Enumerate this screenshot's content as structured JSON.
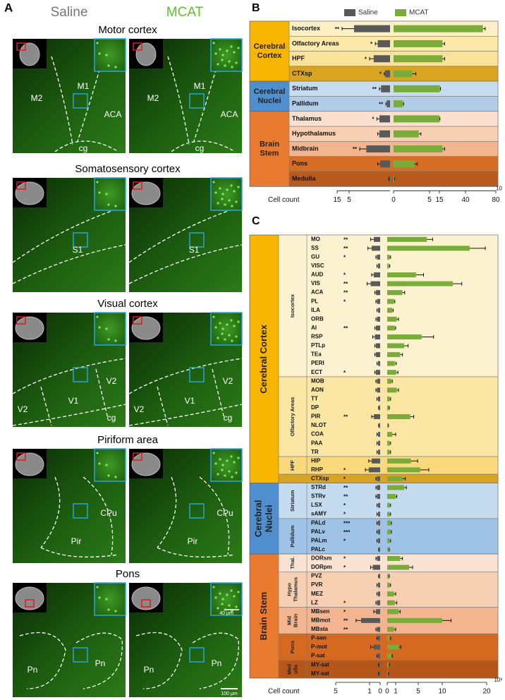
{
  "panel_a": {
    "label": "A",
    "conditions": [
      "Saline",
      "MCAT"
    ],
    "rows": [
      {
        "title": "Motor cortex",
        "regions": [
          "M2",
          "M1",
          "ACA",
          "cg"
        ]
      },
      {
        "title": "Somatosensory cortex",
        "regions": [
          "S1"
        ]
      },
      {
        "title": "Visual cortex",
        "regions": [
          "V1",
          "V2",
          "V2",
          "cg"
        ]
      },
      {
        "title": "Piriform area",
        "regions": [
          "CPu",
          "Pir"
        ]
      },
      {
        "title": "Pons",
        "regions": [
          "Pn",
          "Pn"
        ]
      }
    ],
    "scale_bars": [
      "40 μm",
      "100 μm"
    ]
  },
  "chart_data": [
    {
      "type": "bar",
      "panel": "B",
      "xlabel": "Cell count",
      "x_multiplier": "10",
      "xticks_left": [
        15,
        5
      ],
      "xticks_right": [
        0,
        5,
        15,
        40,
        80
      ],
      "groups": [
        {
          "lines": [
            "Cerebral",
            "Cortex"
          ],
          "color": "#f7b500",
          "categories": [
            "Isocortex",
            "Olfactory Areas",
            "HPF",
            "CTXsp"
          ],
          "significance": [
            "**",
            "*",
            "*",
            "*"
          ],
          "row_colors": [
            "#fdf0c4",
            "#fde9a8",
            "#fbe29a",
            "#d9a521"
          ]
        },
        {
          "lines": [
            "Cerebral",
            "Nuclei"
          ],
          "color": "#4f8fcf",
          "categories": [
            "Striatum",
            "Pallidum"
          ],
          "significance": [
            "**",
            "**"
          ],
          "row_colors": [
            "#c8dcf0",
            "#b3cde9"
          ]
        },
        {
          "lines": [
            "Brain",
            "Stem"
          ],
          "color": "#e97b30",
          "categories": [
            "Thalamus",
            "Hypothalamus",
            "Midbrain",
            "Pons",
            "Medulla"
          ],
          "significance": [
            "*",
            null,
            "**",
            null,
            null
          ],
          "row_colors": [
            "#fbe0cf",
            "#f8cfb3",
            "#f3b590",
            "#d66d25",
            "#b85a1d"
          ]
        }
      ],
      "series": [
        {
          "name": "Saline",
          "color": "#595959",
          "values": [
            4.4,
            1.5,
            2.0,
            0.6,
            1.1,
            0.4,
            1.3,
            1.3,
            2.9,
            1.2,
            0.1
          ],
          "errors": [
            6.5,
            0.3,
            0.5,
            0.1,
            0.2,
            0.1,
            0.3,
            0.2,
            0.8,
            0.3,
            0.05
          ]
        },
        {
          "name": "MCAT",
          "color": "#7aac3b",
          "values": [
            63,
            18,
            18,
            2.6,
            15.5,
            1.3,
            15.2,
            3.5,
            18,
            2.9,
            0.1
          ],
          "errors": [
            3,
            2,
            2,
            0.5,
            0.5,
            0.1,
            0.3,
            0.3,
            2,
            0.4,
            0.05
          ]
        }
      ]
    },
    {
      "type": "bar",
      "panel": "C",
      "xlabel": "Cell count",
      "x_multiplier": "10³",
      "xticks_left": [
        5,
        1,
        0
      ],
      "xticks_right": [
        0,
        1,
        5,
        10,
        20
      ],
      "groups": [
        {
          "lines": [
            "Cerebral Cortex"
          ],
          "color": "#f7b500",
          "subgroups": [
            {
              "lines": [
                "Isocortex"
              ],
              "color": "#fdf2cf",
              "categories": [
                "MO",
                "SS",
                "GU",
                "VISC",
                "AUD",
                "VIS",
                "ACA",
                "PL",
                "ILA",
                "ORB",
                "AI",
                "RSP",
                "PTLp",
                "TEa",
                "PERI",
                "ECT"
              ],
              "significance": [
                "**",
                "**",
                "*",
                null,
                "*",
                "**",
                "**",
                "*",
                null,
                null,
                "**",
                null,
                null,
                null,
                null,
                "*"
              ]
            },
            {
              "lines": [
                "Olfactory Areas"
              ],
              "color": "#fce6a3",
              "categories": [
                "MOB",
                "AON",
                "TT",
                "DP",
                "PIR",
                "NLOT",
                "COA",
                "PAA",
                "TR"
              ],
              "significance": [
                null,
                null,
                null,
                null,
                "**",
                null,
                null,
                null,
                null
              ]
            },
            {
              "lines": [
                "HPF"
              ],
              "color": "#f9d97c",
              "categories": [
                "HIP",
                "RHP"
              ],
              "significance": [
                null,
                "*"
              ]
            },
            {
              "color": "#d9a521",
              "categories": [
                "CTXsp"
              ],
              "significance": [
                "*"
              ]
            }
          ]
        },
        {
          "lines": [
            "Cerebral",
            "Nuclei"
          ],
          "color": "#4f8fcf",
          "subgroups": [
            {
              "lines": [
                "Striatum"
              ],
              "color": "#c5dbf0",
              "categories": [
                "STRd",
                "STRv",
                "LSX",
                "sAMY"
              ],
              "significance": [
                "**",
                "**",
                "*",
                "*"
              ]
            },
            {
              "lines": [
                "Pallidum"
              ],
              "color": "#9fc3e6",
              "categories": [
                "PALd",
                "PALv",
                "PALm",
                "PALc"
              ],
              "significance": [
                "***",
                "***",
                "*",
                null
              ]
            }
          ]
        },
        {
          "lines": [
            "Brain Stem"
          ],
          "color": "#e97b30",
          "subgroups": [
            {
              "lines": [
                "Thal."
              ],
              "color": "#fbe3d3",
              "categories": [
                "DORsm",
                "DORpm"
              ],
              "significance": [
                "*",
                "*"
              ]
            },
            {
              "lines": [
                "Hypo",
                "Thalamus"
              ],
              "color": "#f7cfb2",
              "categories": [
                "PVZ",
                "PVR",
                "MEZ",
                "LZ"
              ],
              "significance": [
                null,
                null,
                null,
                "*"
              ]
            },
            {
              "lines": [
                "Mid",
                "Brain"
              ],
              "color": "#f2b58f",
              "categories": [
                "MBsen",
                "MBmot",
                "MBsta"
              ],
              "significance": [
                "*",
                "**",
                "**"
              ]
            },
            {
              "lines": [
                "Pons"
              ],
              "color": "#d4691f",
              "categories": [
                "P-sen",
                "P-mot",
                "P-sat"
              ],
              "significance": [
                null,
                null,
                null
              ]
            },
            {
              "lines": [
                "Med",
                "ulla"
              ],
              "color": "#b5571a",
              "categories": [
                "MY-sat",
                "MY-sat"
              ],
              "significance": [
                null,
                null
              ]
            }
          ]
        }
      ],
      "series": [
        {
          "name": "Saline",
          "color": "#595959",
          "values": [
            0.6,
            0.8,
            0.3,
            0.2,
            0.6,
            0.9,
            0.4,
            0.3,
            0.2,
            0.3,
            0.4,
            0.5,
            0.4,
            0.4,
            0.2,
            0.4,
            0.3,
            0.3,
            0.2,
            0.1,
            0.6,
            0.1,
            0.2,
            0.2,
            0.2,
            0.8,
            1.1,
            0.3,
            0.3,
            0.3,
            0.2,
            0.2,
            0.2,
            0.2,
            0.2,
            0.1,
            0.3,
            0.7,
            0.1,
            0.2,
            0.2,
            0.3,
            0.4,
            2.0,
            0.3,
            0.2,
            0.6,
            0.2,
            0.1,
            0.1
          ],
          "errors": [
            0.3,
            0.4,
            0.1,
            0.1,
            0.2,
            0.4,
            0.1,
            0.1,
            0.1,
            0.1,
            0.1,
            0.2,
            0.1,
            0.1,
            0.1,
            0.1,
            0.1,
            0.1,
            0.1,
            0.05,
            0.2,
            0.05,
            0.1,
            0.1,
            0.1,
            0.3,
            0.4,
            0.1,
            0.1,
            0.1,
            0.1,
            0.1,
            0.1,
            0.1,
            0.1,
            0.05,
            0.1,
            0.2,
            0.05,
            0.1,
            0.1,
            0.1,
            0.2,
            0.6,
            0.1,
            0.1,
            0.3,
            0.1,
            0.05,
            0.05
          ]
        },
        {
          "name": "MCAT",
          "color": "#7aac3b",
          "values": [
            6.8,
            16.2,
            0.3,
            0.2,
            4.6,
            12.4,
            2.2,
            0.8,
            0.6,
            1.2,
            0.9,
            5.7,
            2.5,
            1.8,
            0.9,
            1.1,
            0.5,
            1.2,
            0.3,
            0.2,
            3.6,
            0.1,
            0.6,
            0.3,
            0.3,
            3.7,
            5.4,
            2.2,
            2.5,
            1.0,
            0.3,
            0.3,
            0.4,
            0.4,
            0.3,
            0.2,
            1.8,
            3.4,
            0.2,
            0.3,
            0.8,
            0.9,
            1.5,
            10.0,
            0.8,
            0.3,
            1.6,
            0.5,
            0.2,
            0.1
          ],
          "errors": [
            1.2,
            3.5,
            0.1,
            0.1,
            1.5,
            2.0,
            0.4,
            0.1,
            0.1,
            0.3,
            0.1,
            2.5,
            0.7,
            0.4,
            0.2,
            0.3,
            0.1,
            0.3,
            0.1,
            0.05,
            0.6,
            0.05,
            0.4,
            0.1,
            0.1,
            1.2,
            1.8,
            0.5,
            0.4,
            0.2,
            0.1,
            0.1,
            0.1,
            0.1,
            0.1,
            0.05,
            0.4,
            0.6,
            0.05,
            0.1,
            0.2,
            0.3,
            0.3,
            2.0,
            0.2,
            0.1,
            0.3,
            0.1,
            0.05,
            0.05
          ]
        }
      ]
    }
  ]
}
